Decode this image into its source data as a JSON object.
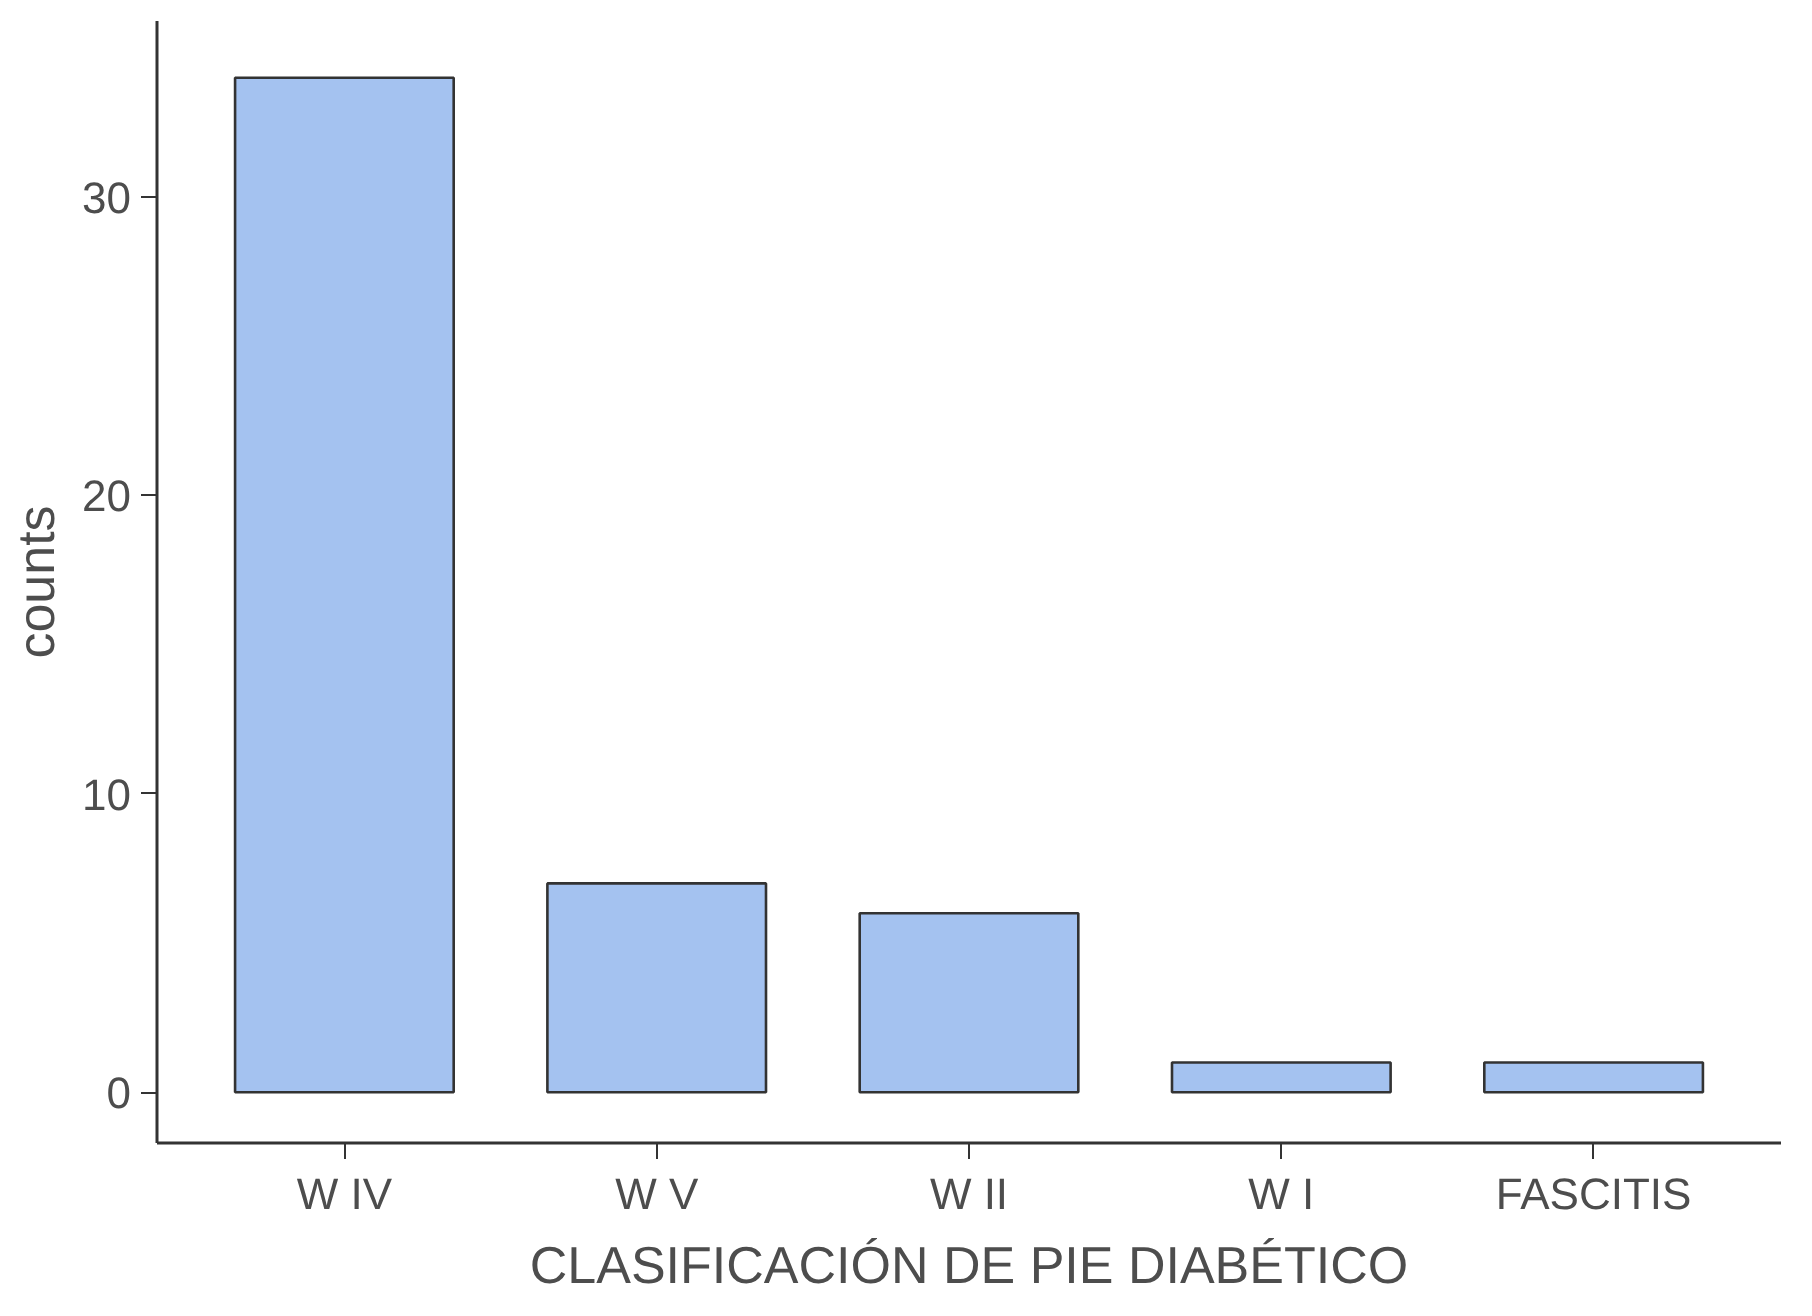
{
  "chart_data": {
    "type": "bar",
    "xlabel": "CLASIFICACIÓN DE PIE DIABÉTICO",
    "ylabel": "counts",
    "categories": [
      "W IV",
      "W V",
      "W II",
      "W I",
      "FASCITIS"
    ],
    "values": [
      34,
      7,
      6,
      1,
      1
    ],
    "color": "#a4c2f0",
    "ylim": [
      -1.7,
      35.9
    ],
    "yticks": [
      0,
      10,
      20,
      30
    ],
    "grid": false
  }
}
